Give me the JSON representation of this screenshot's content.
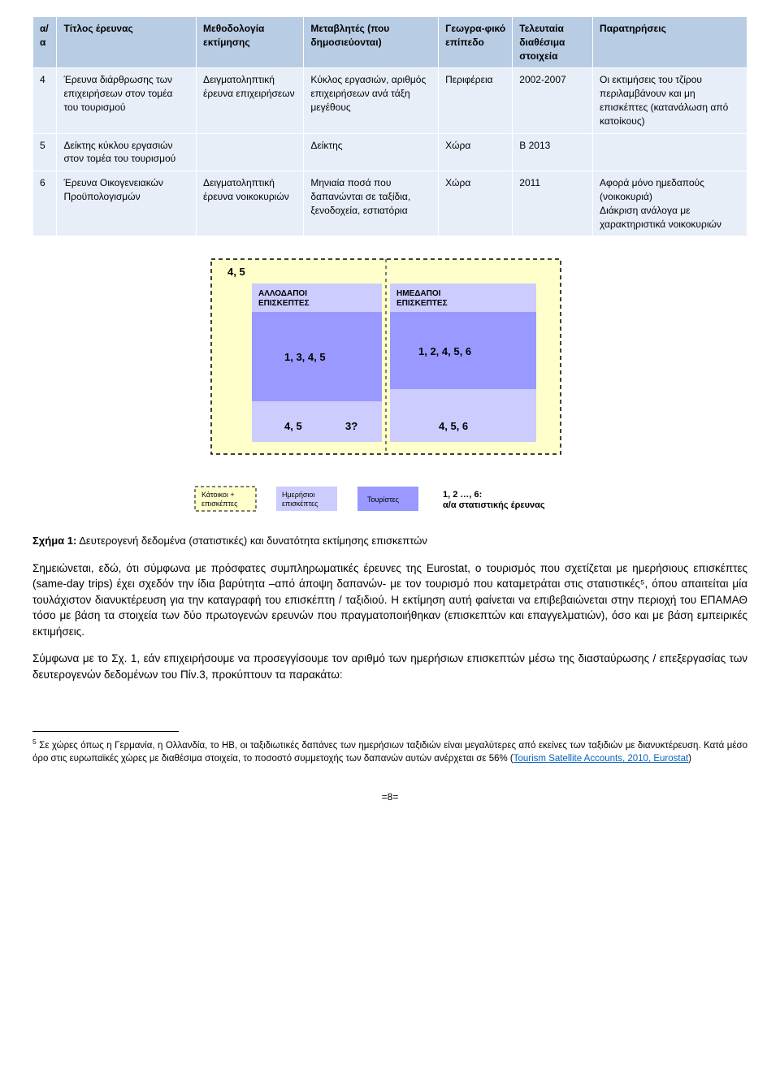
{
  "table": {
    "columns": [
      "α/α",
      "Τίτλος έρευνας",
      "Μεθοδολογία εκτίμησης",
      "Μεταβλητές (που δημοσιεύονται)",
      "Γεωγρα-φικό επίπεδο",
      "Τελευταία διαθέσιμα στοιχεία",
      "Παρατηρήσεις"
    ],
    "rows": [
      [
        "4",
        "Έρευνα διάρθρωσης των επιχειρήσεων στον τομέα του τουρισμού",
        "Δειγματοληπτική έρευνα επιχειρήσεων",
        "Κύκλος εργασιών, αριθμός επιχειρήσεων ανά τάξη μεγέθους",
        "Περιφέρεια",
        "2002-2007",
        "Οι εκτιμήσεις του τζίρου περιλαμβάνουν και μη επισκέπτες (κατανάλωση από κατοίκους)"
      ],
      [
        "5",
        "Δείκτης κύκλου εργασιών στον τομέα του τουρισμού",
        "",
        "Δείκτης",
        "Χώρα",
        "Β 2013",
        ""
      ],
      [
        "6",
        "Έρευνα Οικογενειακών Προϋπολογισμών",
        "Δειγματοληπτική έρευνα νοικοκυριών",
        "Μηνιαία ποσά που δαπανώνται σε ταξίδια, ξενοδοχεία, εστιατόρια",
        "Χώρα",
        "2011",
        "Αφορά μόνο ημεδαπούς (νοικοκυριά)\nΔιάκριση ανάλογα με χαρακτηριστικά νοικοκυριών"
      ]
    ],
    "header_bg": "#b8cce4",
    "cell_bg": "#e8eef7",
    "border_color": "#ffffff"
  },
  "diagram": {
    "outer_label": "4, 5",
    "left_box_title": "ΑΛΛΟΔΑΠΟΙ ΕΠΙΣΚΕΠΤΕΣ",
    "right_box_title": "ΗΜΕΔΑΠΟΙ ΕΠΙΣΚΕΠΤΕΣ",
    "inner_left_big": "1, 3, 4, 5",
    "inner_right_big": "1, 2, 4, 5, 6",
    "bottom_left": "4, 5",
    "bottom_left2": "3?",
    "bottom_right": "4, 5, 6",
    "legend": {
      "katoikoi": "Κάτοικοι + επισκέπτες",
      "imerisioi": "Ημερήσιοι επισκέπτες",
      "touristes": "Τουρίστες",
      "note": "1, 2 …, 6:\nα/α στατιστικής έρευνας"
    },
    "colors": {
      "outer_bg": "#ffffcc",
      "outer_border": "#000000",
      "box_fill": "#ccccff",
      "inner_fill": "#9999ff",
      "text": "#000000"
    }
  },
  "caption": "Σχήμα 1: Δευτερογενή δεδομένα (στατιστικές) και δυνατότητα εκτίμησης επισκεπτών",
  "caption_prefix": "Σχήμα 1:",
  "caption_rest": " Δευτερογενή δεδομένα (στατιστικές) και δυνατότητα εκτίμησης επισκεπτών",
  "p1": "Σημειώνεται, εδώ, ότι σύμφωνα με πρόσφατες συμπληρωματικές έρευνες της Eurostat, ο τουρισμός που σχετίζεται με ημερήσιους επισκέπτες (same-day trips) έχει σχεδόν την ίδια βαρύτητα –από άποψη δαπανών- με τον τουρισμό που καταμετράται στις στατιστικές⁵, όπου απαιτείται μία τουλάχιστον διανυκτέρευση για την καταγραφή του επισκέπτη / ταξιδιού. Η εκτίμηση αυτή φαίνεται να επιβεβαιώνεται στην περιοχή του ΕΠΑΜΑΘ τόσο με βάση τα στοιχεία των δύο πρωτογενών ερευνών που πραγματοποιήθηκαν (επισκεπτών και επαγγελματιών), όσο και με βάση εμπειρικές εκτιμήσεις.",
  "p2": "Σύμφωνα με το Σχ. 1, εάν επιχειρήσουμε να προσεγγίσουμε τον αριθμό των ημερήσιων επισκεπτών μέσω της διασταύρωσης / επεξεργασίας των δευτερογενών δεδομένων του Πίν.3, προκύπτουν τα παρακάτω:",
  "footnote": {
    "num": "5",
    "text_a": " Σε χώρες όπως η Γερμανία, η Ολλανδία, το ΗΒ, οι ταξιδιωτικές δαπάνες των ημερήσιων ταξιδιών είναι μεγαλύτερες από εκείνες των ταξιδιών με διανυκτέρευση. Κατά μέσο όρο στις ευρωπαϊκές χώρες με διαθέσιμα στοιχεία, το ποσοστό συμμετοχής των δαπανών αυτών ανέρχεται σε 56% (",
    "link": "Tourism Satellite Accounts, 2010, Eurostat",
    "text_b": ")"
  },
  "pagenum": "=8="
}
